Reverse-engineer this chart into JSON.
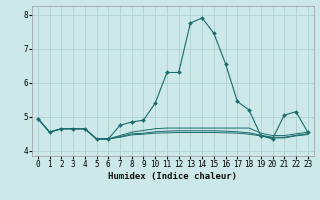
{
  "xlabel": "Humidex (Indice chaleur)",
  "xlim": [
    -0.5,
    23.5
  ],
  "ylim": [
    3.85,
    8.25
  ],
  "yticks": [
    4,
    5,
    6,
    7,
    8
  ],
  "xticks": [
    0,
    1,
    2,
    3,
    4,
    5,
    6,
    7,
    8,
    9,
    10,
    11,
    12,
    13,
    14,
    15,
    16,
    17,
    18,
    19,
    20,
    21,
    22,
    23
  ],
  "bg_color": "#cce8e8",
  "grid_color": "#b0d0d0",
  "line_color": "#1a6b6b",
  "series": [
    [
      4.95,
      4.55,
      4.65,
      4.65,
      4.65,
      4.35,
      4.35,
      4.75,
      4.85,
      4.9,
      5.4,
      6.3,
      6.3,
      7.75,
      7.9,
      7.45,
      6.55,
      5.45,
      5.2,
      4.45,
      4.35,
      5.05,
      5.15,
      4.55
    ],
    [
      4.95,
      4.55,
      4.65,
      4.65,
      4.65,
      4.35,
      4.35,
      4.45,
      4.55,
      4.6,
      4.65,
      4.67,
      4.67,
      4.67,
      4.67,
      4.67,
      4.67,
      4.67,
      4.67,
      4.52,
      4.45,
      4.45,
      4.5,
      4.55
    ],
    [
      4.95,
      4.55,
      4.65,
      4.65,
      4.65,
      4.35,
      4.35,
      4.42,
      4.5,
      4.52,
      4.56,
      4.58,
      4.59,
      4.59,
      4.59,
      4.59,
      4.58,
      4.56,
      4.53,
      4.46,
      4.4,
      4.4,
      4.46,
      4.5
    ],
    [
      4.95,
      4.55,
      4.65,
      4.65,
      4.65,
      4.35,
      4.35,
      4.4,
      4.47,
      4.49,
      4.52,
      4.53,
      4.54,
      4.54,
      4.54,
      4.54,
      4.53,
      4.52,
      4.49,
      4.44,
      4.38,
      4.38,
      4.44,
      4.48
    ]
  ],
  "xlabel_fontsize": 6.5,
  "tick_fontsize": 5.5
}
